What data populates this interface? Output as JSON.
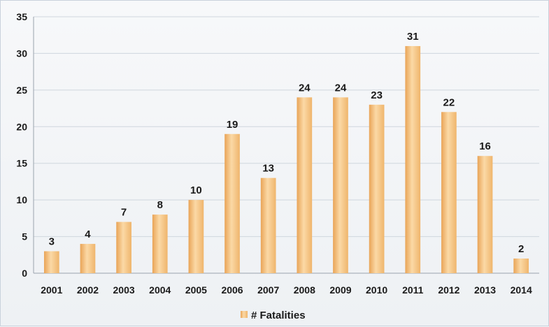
{
  "chart_data": {
    "type": "bar",
    "categories": [
      "2001",
      "2002",
      "2003",
      "2004",
      "2005",
      "2006",
      "2007",
      "2008",
      "2009",
      "2010",
      "2011",
      "2012",
      "2013",
      "2014"
    ],
    "series": [
      {
        "name": "# Fatalities",
        "values": [
          3,
          4,
          7,
          8,
          10,
          19,
          13,
          24,
          24,
          23,
          31,
          22,
          16,
          2
        ],
        "color": "#f3b86a"
      }
    ],
    "data_labels": [
      "3",
      "4",
      "7",
      "8",
      "10",
      "19",
      "13",
      "24",
      "24",
      "23",
      "31",
      "22",
      "16",
      "2"
    ],
    "y_ticks": [
      "0",
      "5",
      "10",
      "15",
      "20",
      "25",
      "30",
      "35"
    ],
    "ylim": [
      0,
      35
    ],
    "title": "",
    "xlabel": "",
    "ylabel": "",
    "grid": true,
    "legend": {
      "position": "bottom-center",
      "label": "# Fatalities"
    },
    "colors": {
      "bar": "#f3b86a",
      "bar_highlight": "#fbd9a6",
      "grid": "#cfd6de",
      "axis": "#9aa3ad"
    }
  }
}
